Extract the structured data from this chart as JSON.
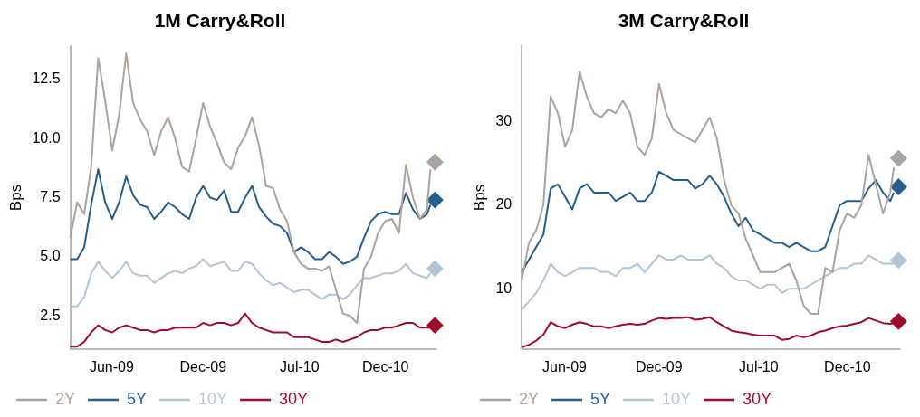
{
  "chart_data": [
    {
      "type": "line",
      "title": "1M Carry&Roll",
      "ylabel": "Bps",
      "marker": "none",
      "legend": "bottom left",
      "x": [
        "2009-03-29",
        "2009-04-12",
        "2009-04-26",
        "2009-05-10",
        "2009-05-24",
        "2009-06-07",
        "2009-06-21",
        "2009-07-05",
        "2009-07-19",
        "2009-08-02",
        "2009-08-16",
        "2009-08-30",
        "2009-09-13",
        "2009-09-27",
        "2009-10-11",
        "2009-10-25",
        "2009-11-08",
        "2009-11-22",
        "2009-12-06",
        "2009-12-20",
        "2010-01-03",
        "2010-01-17",
        "2010-01-31",
        "2010-02-14",
        "2010-02-28",
        "2010-03-14",
        "2010-03-28",
        "2010-04-11",
        "2010-04-25",
        "2010-05-09",
        "2010-05-23",
        "2010-06-06",
        "2010-06-20",
        "2010-07-04",
        "2010-07-18",
        "2010-08-01",
        "2010-08-15",
        "2010-08-29",
        "2010-09-12",
        "2010-09-26",
        "2010-10-10",
        "2010-10-24",
        "2010-11-07",
        "2010-11-21",
        "2010-12-05",
        "2010-12-19",
        "2011-01-02",
        "2011-01-16",
        "2011-01-30",
        "2011-02-13",
        "2011-02-27",
        "2011-03-13",
        "2011-03-20"
      ],
      "xlim": [
        "2009-03-29",
        "2011-04-01"
      ],
      "xticks": [
        {
          "value": "2009-06-20",
          "label": "Jun-09"
        },
        {
          "value": "2009-12-20",
          "label": "Dec-09"
        },
        {
          "value": "2010-07-01",
          "label": "Jul-10"
        },
        {
          "value": "2010-12-20",
          "label": "Dec-10"
        }
      ],
      "ylim": [
        1.1,
        13.9
      ],
      "yticks": [
        2.5,
        {
          "value": 5,
          "label": "5.0"
        },
        7.5,
        {
          "value": 10,
          "label": "10.0"
        },
        12.5
      ],
      "series": [
        {
          "name": "2Y",
          "color": "#aca39a",
          "values": [
            5.8,
            7.3,
            6.8,
            8.8,
            13.4,
            11.6,
            9.5,
            11.0,
            13.6,
            11.5,
            10.8,
            10.3,
            9.3,
            10.3,
            10.9,
            10.0,
            8.8,
            8.6,
            10.0,
            11.5,
            10.5,
            9.8,
            9.0,
            8.7,
            9.6,
            10.1,
            10.9,
            9.7,
            8.0,
            7.9,
            7.0,
            6.5,
            5.2,
            4.7,
            4.5,
            4.5,
            4.4,
            4.6,
            3.6,
            2.6,
            2.5,
            2.2,
            4.5,
            5.0,
            6.0,
            6.5,
            6.6,
            6.0,
            8.9,
            7.5,
            6.6,
            7.0,
            8.7
          ]
        },
        {
          "name": "5Y",
          "color": "#255e8e",
          "values": [
            4.9,
            4.9,
            5.4,
            7.2,
            8.7,
            7.3,
            6.6,
            7.3,
            8.4,
            7.6,
            7.2,
            7.1,
            6.6,
            6.9,
            7.3,
            7.1,
            6.8,
            6.6,
            7.5,
            8.0,
            7.5,
            7.4,
            7.8,
            6.9,
            6.9,
            7.5,
            8.0,
            7.1,
            6.7,
            6.4,
            6.3,
            6.0,
            5.2,
            5.4,
            5.2,
            4.9,
            4.9,
            5.2,
            5.0,
            4.7,
            4.8,
            5.0,
            5.8,
            6.5,
            6.8,
            6.9,
            6.8,
            6.8,
            7.7,
            7.0,
            6.6,
            6.8,
            7.2
          ]
        },
        {
          "name": "10Y",
          "color": "#b3c5d5",
          "values": [
            2.9,
            2.9,
            3.3,
            4.3,
            4.8,
            4.4,
            4.1,
            4.4,
            4.8,
            4.3,
            4.2,
            4.2,
            3.9,
            4.1,
            4.3,
            4.4,
            4.3,
            4.5,
            4.6,
            4.9,
            4.6,
            4.7,
            4.8,
            4.4,
            4.4,
            4.8,
            4.7,
            4.3,
            4.0,
            3.8,
            3.9,
            3.7,
            3.5,
            3.6,
            3.6,
            3.4,
            3.2,
            3.4,
            3.4,
            3.2,
            3.4,
            3.8,
            4.1,
            4.1,
            4.2,
            4.3,
            4.3,
            4.4,
            4.7,
            4.3,
            4.2,
            4.1,
            4.3
          ]
        },
        {
          "name": "30Y",
          "color": "#9c0d2c",
          "values": [
            1.2,
            1.2,
            1.4,
            1.8,
            2.1,
            1.9,
            1.8,
            2.0,
            2.1,
            2.0,
            1.9,
            1.9,
            1.8,
            1.9,
            1.9,
            2.0,
            2.0,
            2.0,
            2.0,
            2.2,
            2.1,
            2.2,
            2.2,
            2.1,
            2.2,
            2.6,
            2.2,
            2.0,
            1.9,
            1.8,
            1.8,
            1.8,
            1.6,
            1.6,
            1.6,
            1.5,
            1.4,
            1.4,
            1.5,
            1.4,
            1.5,
            1.6,
            1.8,
            1.9,
            1.9,
            2.0,
            2.0,
            2.1,
            2.2,
            2.2,
            2.0,
            2.0,
            2.0
          ]
        },
        {
          "type": "scatter",
          "marker": "diamond",
          "color": "#aca39a",
          "x": [
            "2011-03-29"
          ],
          "values": [
            9.0
          ]
        },
        {
          "type": "scatter",
          "marker": "diamond",
          "color": "#255e8e",
          "x": [
            "2011-03-29"
          ],
          "values": [
            7.4
          ]
        },
        {
          "type": "scatter",
          "marker": "diamond",
          "color": "#b3c5d5",
          "x": [
            "2011-03-29"
          ],
          "values": [
            4.5
          ]
        },
        {
          "type": "scatter",
          "marker": "diamond",
          "color": "#9c0d2c",
          "x": [
            "2011-03-29"
          ],
          "values": [
            2.1
          ]
        }
      ]
    },
    {
      "type": "line",
      "title": "3M Carry&Roll",
      "ylabel": "Bps",
      "marker": "none",
      "legend": "bottom left",
      "x": [
        "2009-03-29",
        "2009-04-12",
        "2009-04-26",
        "2009-05-10",
        "2009-05-24",
        "2009-06-07",
        "2009-06-21",
        "2009-07-05",
        "2009-07-19",
        "2009-08-02",
        "2009-08-16",
        "2009-08-30",
        "2009-09-13",
        "2009-09-27",
        "2009-10-11",
        "2009-10-25",
        "2009-11-08",
        "2009-11-22",
        "2009-12-06",
        "2009-12-20",
        "2010-01-03",
        "2010-01-17",
        "2010-01-31",
        "2010-02-14",
        "2010-02-28",
        "2010-03-14",
        "2010-03-28",
        "2010-04-11",
        "2010-04-25",
        "2010-05-09",
        "2010-05-23",
        "2010-06-06",
        "2010-06-20",
        "2010-07-04",
        "2010-07-18",
        "2010-08-01",
        "2010-08-15",
        "2010-08-29",
        "2010-09-12",
        "2010-09-26",
        "2010-10-10",
        "2010-10-24",
        "2010-11-07",
        "2010-11-21",
        "2010-12-05",
        "2010-12-19",
        "2011-01-02",
        "2011-01-16",
        "2011-01-30",
        "2011-02-13",
        "2011-02-27",
        "2011-03-13",
        "2011-03-20"
      ],
      "xlim": [
        "2009-03-29",
        "2011-04-01"
      ],
      "xticks": [
        {
          "value": "2009-06-20",
          "label": "Jun-09"
        },
        {
          "value": "2009-12-20",
          "label": "Dec-09"
        },
        {
          "value": "2010-07-01",
          "label": "Jul-10"
        },
        {
          "value": "2010-12-20",
          "label": "Dec-10"
        }
      ],
      "ylim": [
        2.8,
        39
      ],
      "yticks": [
        10,
        20,
        30
      ],
      "series": [
        {
          "name": "2Y",
          "color": "#aca39a",
          "values": [
            11,
            15.5,
            17,
            20,
            33,
            31,
            27,
            29,
            36,
            33,
            31,
            30.5,
            31.5,
            31,
            32.5,
            31,
            27,
            26,
            28,
            34.5,
            31,
            29,
            28.5,
            28,
            27.5,
            29,
            30.5,
            28,
            23,
            20,
            19,
            16,
            14,
            12,
            12,
            12,
            12.5,
            13,
            11,
            8,
            7,
            7,
            12.5,
            12,
            17,
            19,
            18.5,
            20,
            26,
            22.5,
            19,
            21.5,
            24.5
          ]
        },
        {
          "name": "5Y",
          "color": "#255e8e",
          "values": [
            12,
            13.5,
            15,
            16.5,
            22,
            22.5,
            21,
            19.5,
            22,
            22.5,
            21.5,
            21.5,
            21.5,
            20.5,
            21,
            21.5,
            20.5,
            20.5,
            21.5,
            24,
            23.5,
            23,
            23,
            23,
            22,
            22.5,
            23.5,
            22.5,
            21,
            19,
            17.5,
            18.5,
            17,
            16.5,
            16,
            15.5,
            15.5,
            15,
            15.5,
            15,
            14.5,
            14.5,
            15,
            17.5,
            20,
            20.5,
            20.5,
            20.5,
            22,
            23,
            21.5,
            20.5,
            21.5
          ]
        },
        {
          "name": "10Y",
          "color": "#b3c5d5",
          "values": [
            7.5,
            8.5,
            9.5,
            11,
            13,
            12,
            11.5,
            12,
            12.5,
            12.5,
            12.5,
            12,
            12,
            11.5,
            12.5,
            12.5,
            13,
            12,
            13,
            14,
            13.5,
            13.5,
            14,
            13.5,
            13.5,
            13.5,
            14,
            13,
            12.5,
            11.5,
            11,
            11,
            10.5,
            10,
            10.5,
            10.5,
            9.5,
            10,
            10,
            10,
            10.5,
            11,
            11.5,
            12,
            12.5,
            12.5,
            13,
            13,
            14,
            13.5,
            13,
            13,
            13
          ]
        },
        {
          "name": "30Y",
          "color": "#9c0d2c",
          "values": [
            3.0,
            3.3,
            3.8,
            4.5,
            6.0,
            5.5,
            5.3,
            5.7,
            6.0,
            5.8,
            5.5,
            5.5,
            5.3,
            5.5,
            5.7,
            5.8,
            5.7,
            5.8,
            6.2,
            6.5,
            6.4,
            6.5,
            6.5,
            6.6,
            6.3,
            6.4,
            6.6,
            6.0,
            5.5,
            5.0,
            4.8,
            4.7,
            4.5,
            4.4,
            4.4,
            4.4,
            3.9,
            4.0,
            4.4,
            4.2,
            4.4,
            4.8,
            5.0,
            5.3,
            5.5,
            5.6,
            5.8,
            6.0,
            6.5,
            6.2,
            5.9,
            5.8,
            5.9
          ]
        },
        {
          "type": "scatter",
          "marker": "diamond",
          "color": "#aca39a",
          "x": [
            "2011-03-29"
          ],
          "values": [
            25.6
          ]
        },
        {
          "type": "scatter",
          "marker": "diamond",
          "color": "#255e8e",
          "x": [
            "2011-03-29"
          ],
          "values": [
            22.2
          ]
        },
        {
          "type": "scatter",
          "marker": "diamond",
          "color": "#b3c5d5",
          "x": [
            "2011-03-29"
          ],
          "values": [
            13.4
          ]
        },
        {
          "type": "scatter",
          "marker": "diamond",
          "color": "#9c0d2c",
          "x": [
            "2011-03-29"
          ],
          "values": [
            6.1
          ]
        }
      ]
    }
  ]
}
